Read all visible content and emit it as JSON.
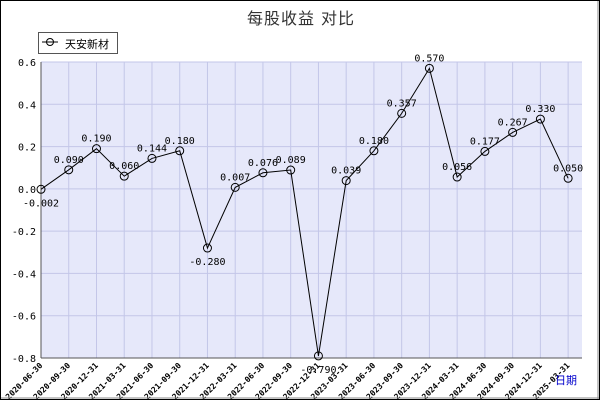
{
  "chart_data": {
    "type": "line",
    "title": "每股收益  对比",
    "xlabel": "",
    "ylabel": "",
    "ylim": [
      -0.8,
      0.6
    ],
    "yticks": [
      0.6,
      0.4,
      0.2,
      0.0,
      -0.2,
      -0.4,
      -0.6,
      -0.8
    ],
    "grid": true,
    "legend_position": "top-left",
    "categories": [
      "2020-06-30",
      "2020-09-30",
      "2020-12-31",
      "2021-03-31",
      "2021-06-30",
      "2021-09-30",
      "2021-12-31",
      "2022-03-31",
      "2022-06-30",
      "2022-09-30",
      "2022-12-31",
      "2023-03-31",
      "2023-06-30",
      "2023-09-30",
      "2023-12-31",
      "2024-03-31",
      "2024-06-30",
      "2024-09-30",
      "2024-12-31",
      "2025-03-31"
    ],
    "series": [
      {
        "name": "天安新材",
        "values": [
          -0.002,
          0.09,
          0.19,
          0.06,
          0.144,
          0.18,
          -0.28,
          0.007,
          0.076,
          0.089,
          -0.79,
          0.039,
          0.18,
          0.357,
          0.57,
          0.056,
          0.177,
          0.267,
          0.33,
          0.05
        ],
        "labels": [
          "-0.002",
          "0.090",
          "0.190",
          "0.060",
          "0.144",
          "0.180",
          "-0.280",
          "0.007",
          "0.076",
          "0.089",
          "-0.790",
          "0.039",
          "0.180",
          "0.357",
          "0.570",
          "0.056",
          "0.177",
          "0.267",
          "0.330",
          "0.050"
        ],
        "color": "#000000"
      }
    ]
  },
  "link_text": "日期",
  "colors": {
    "plot_bg": "#e6e8fa",
    "grid": "#c3c6e8",
    "line": "#000000",
    "axis_text": "#000000"
  }
}
